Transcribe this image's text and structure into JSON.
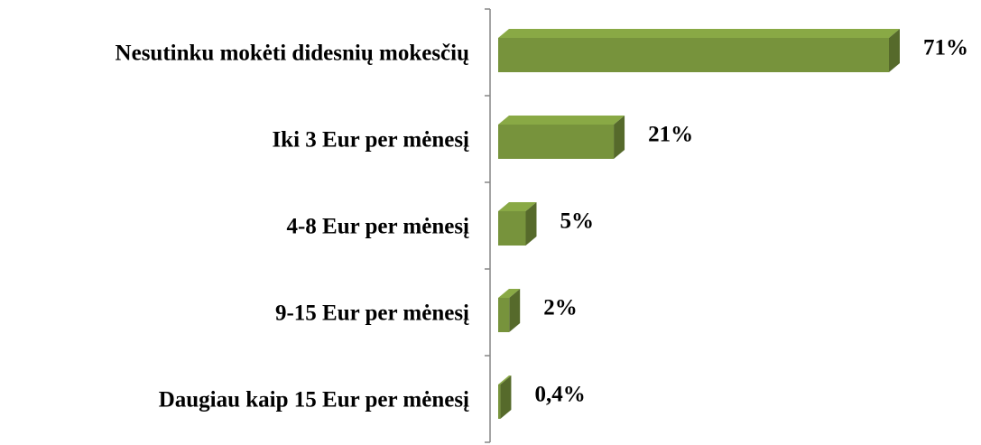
{
  "chart_data": {
    "type": "bar",
    "orientation": "horizontal",
    "categories": [
      "Nesutinku mokėti didesnių mokesčių",
      "Iki 3 Eur per mėnesį",
      "4-8 Eur per mėnesį",
      "9-15 Eur per mėnesį",
      "Daugiau kaip 15 Eur per mėnesį"
    ],
    "values": [
      71,
      21,
      5,
      2,
      0.4
    ],
    "value_labels": [
      "71%",
      "21%",
      "5%",
      "2%",
      "0,4%"
    ],
    "color": "#77933c"
  }
}
